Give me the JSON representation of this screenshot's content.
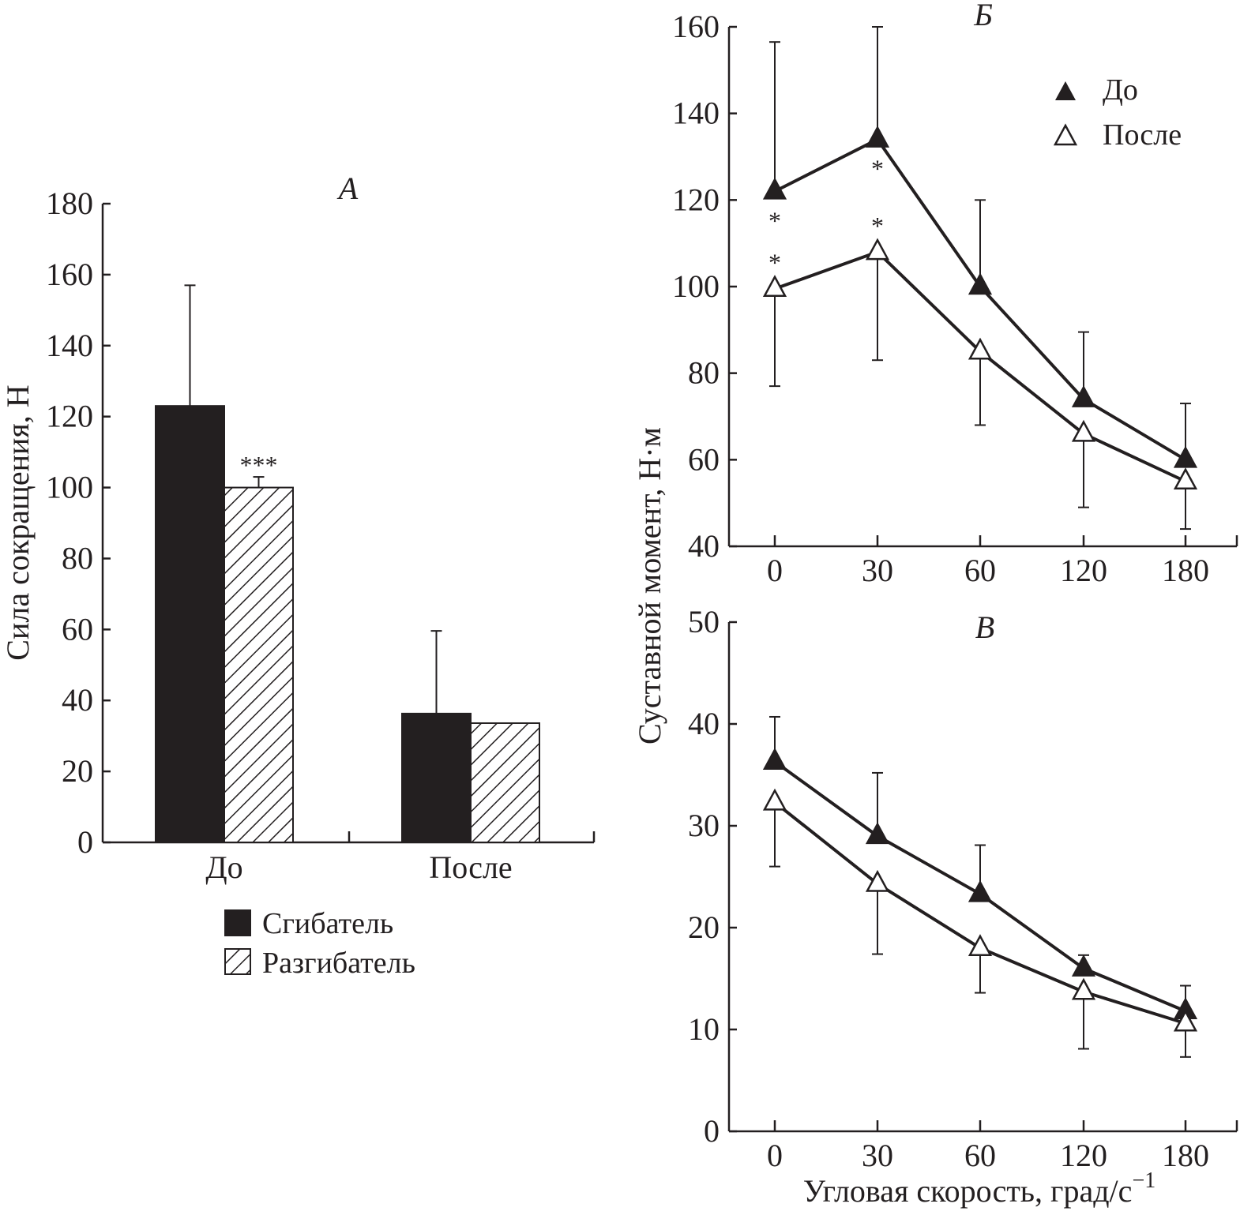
{
  "chart_data": [
    {
      "id": "A",
      "type": "bar",
      "panel_label": "А",
      "title": "",
      "xlabel": "",
      "ylabel": "Сила сокращения, Н",
      "ylim": [
        0,
        180
      ],
      "yticks": [
        0,
        20,
        40,
        60,
        80,
        100,
        120,
        140,
        160,
        180
      ],
      "ytick_labels": [
        "0",
        "20",
        "40",
        "60",
        "80",
        "100",
        "120",
        "140",
        "160",
        "180"
      ],
      "categories": [
        "До",
        "После"
      ],
      "series": [
        {
          "name": "Сгибатель",
          "fill": "solid",
          "color": "#231f20",
          "values": [
            123,
            36.3
          ],
          "error_plus": [
            34,
            23.3
          ]
        },
        {
          "name": "Разгибатель",
          "fill": "hatched",
          "color": "#231f20",
          "values": [
            100,
            33.6
          ],
          "error_plus": [
            3,
            0
          ]
        }
      ],
      "annotations": [
        {
          "text": "***",
          "category": "До",
          "series": "Разгибатель"
        }
      ],
      "legend": {
        "placement": "bottom",
        "entries": [
          "Сгибатель",
          "Разгибатель"
        ]
      },
      "grid": false
    },
    {
      "id": "B",
      "type": "line",
      "panel_label": "Б",
      "xlabel": "",
      "ylabel": "Суставной момент, Н·м",
      "ylim": [
        40,
        160
      ],
      "yticks": [
        40,
        60,
        80,
        100,
        120,
        140,
        160
      ],
      "ytick_labels": [
        "40",
        "60",
        "80",
        "100",
        "120",
        "140",
        "160"
      ],
      "categories": [
        "0",
        "30",
        "60",
        "120",
        "180"
      ],
      "series": [
        {
          "name": "До",
          "marker": "filled-triangle",
          "values": [
            122,
            134,
            100,
            74,
            60
          ],
          "error_plus": [
            34.5,
            26,
            20,
            15.5,
            13
          ],
          "error_minus": [
            0,
            0,
            0,
            0,
            0
          ]
        },
        {
          "name": "После",
          "marker": "open-triangle",
          "values": [
            99.5,
            108,
            85,
            66,
            55
          ],
          "error_plus": [
            0,
            0,
            0,
            0,
            0
          ],
          "error_minus": [
            22.5,
            25,
            17,
            17,
            11
          ]
        }
      ],
      "annotations": [
        {
          "text": "*",
          "category": "0",
          "series": "До"
        },
        {
          "text": "*",
          "category": "30",
          "series": "До"
        },
        {
          "text": "*",
          "category": "0",
          "series": "После"
        },
        {
          "text": "*",
          "category": "30",
          "series": "После"
        }
      ],
      "legend": {
        "placement": "top-right",
        "entries": [
          "До",
          "После"
        ]
      },
      "grid": false
    },
    {
      "id": "C",
      "type": "line",
      "panel_label": "В",
      "xlabel": "Угловая скорость, град/с",
      "xlabel_superscript": "−1",
      "ylabel": "Суставной момент, Н·м",
      "ylim": [
        0,
        50
      ],
      "yticks": [
        0,
        10,
        20,
        30,
        40,
        50
      ],
      "ytick_labels": [
        "0",
        "10",
        "20",
        "30",
        "40",
        "50"
      ],
      "categories": [
        "0",
        "30",
        "60",
        "120",
        "180"
      ],
      "series": [
        {
          "name": "До",
          "marker": "filled-triangle",
          "values": [
            36.3,
            29,
            23.3,
            16,
            11.8
          ],
          "error_plus": [
            4.4,
            6.2,
            4.8,
            1.3,
            2.5
          ],
          "error_minus": [
            0,
            0,
            0,
            0,
            0
          ]
        },
        {
          "name": "После",
          "marker": "open-triangle",
          "values": [
            32.3,
            24.3,
            18,
            13.7,
            10.6
          ],
          "error_plus": [
            0,
            0,
            0,
            0,
            0
          ],
          "error_minus": [
            6.3,
            6.9,
            4.4,
            5.6,
            3.3
          ]
        }
      ],
      "grid": false
    }
  ]
}
